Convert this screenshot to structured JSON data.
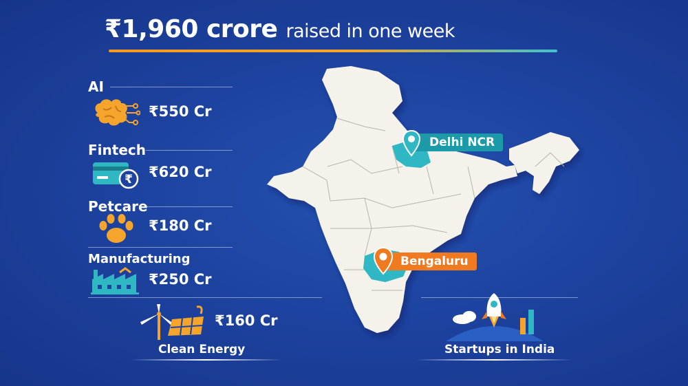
{
  "title": {
    "highlight": "₹1,960 crore",
    "rest": "raised in one week"
  },
  "sectors": [
    {
      "label": "AI",
      "amount": "₹550 Cr",
      "icon": "brain-circuit-icon"
    },
    {
      "label": "Fintech",
      "amount": "₹620 Cr",
      "icon": "card-rupee-icon"
    },
    {
      "label": "Petcare",
      "amount": "₹180 Cr",
      "icon": "paw-icon"
    },
    {
      "label": "Manufacturing",
      "amount": "₹250 Cr",
      "icon": "factory-icon"
    }
  ],
  "clean_energy": {
    "label": "Clean Energy",
    "amount": "₹160 Cr",
    "icon": "wind-solar-icon"
  },
  "map": {
    "hubs": [
      {
        "label": "Delhi NCR",
        "color": "#1d9aa8"
      },
      {
        "label": "Bengaluru",
        "color": "#f07a1f"
      }
    ]
  },
  "startups": {
    "label": "Startups in India",
    "icon": "rocket-icon"
  },
  "colors": {
    "background": "#1d43a0",
    "accent_orange": "#f59a1f",
    "accent_teal": "#2fb8c4",
    "map_fill": "#f4f2ea"
  }
}
